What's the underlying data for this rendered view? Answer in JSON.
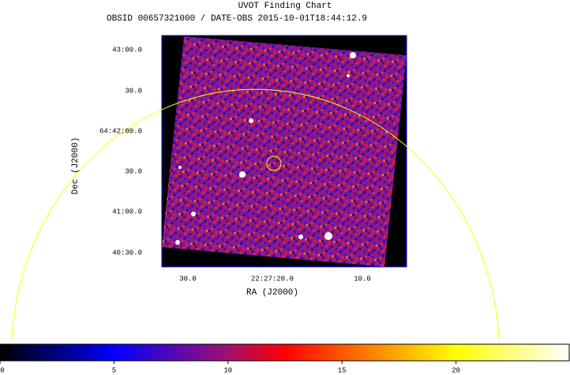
{
  "chart_data": {
    "type": "image",
    "title": "UVOT Finding Chart",
    "subtitle": "OBSID 00657321000 / DATE-OBS 2015-10-01T18:44:12.9",
    "x_label": "RA (J2000)",
    "y_label": "Dec (J2000)",
    "xtick_labels": [
      "30.0",
      "22:27:20.0",
      "10.0"
    ],
    "ytick_labels": [
      "43:00.0",
      "30.0",
      "64:42:00.0",
      "30.0",
      "41:00.0",
      "40:30.0"
    ],
    "colorbar": {
      "lim": [
        0,
        25
      ],
      "ticks": [
        0,
        5,
        10,
        15,
        20
      ]
    }
  }
}
